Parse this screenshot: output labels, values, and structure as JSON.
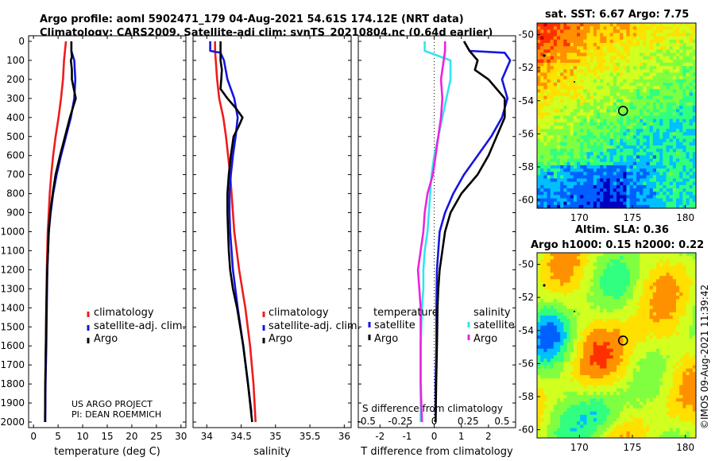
{
  "title": {
    "line1": "Argo profile: aoml 5902471_179 04-Aug-2021 54.61S 174.12E (NRT data)",
    "line2": "Climatology: CARS2009. Satellite-adj clim: synTS_20210804.nc (0.64d earlier)"
  },
  "credits": {
    "line1": "US ARGO PROJECT",
    "line2": "PI: DEAN ROEMMICH"
  },
  "imos_stamp": "©IMOS 09-Aug-2021 11:39:42",
  "colors": {
    "climatology": "#ee1c1c",
    "satellite": "#1515e0",
    "argo": "#000000",
    "sat_salinity": "#33e5ee",
    "argo_salinity": "#ee22dd"
  },
  "depth_axis": {
    "ticks": [
      0,
      100,
      200,
      300,
      400,
      500,
      600,
      700,
      800,
      900,
      1000,
      1100,
      1200,
      1300,
      1400,
      1500,
      1600,
      1700,
      1800,
      1900,
      2000
    ],
    "range": [
      0,
      2050
    ]
  },
  "chart_data": [
    {
      "type": "line",
      "name": "temperature-panel",
      "xlabel": "temperature (deg C)",
      "xlim": [
        -1,
        31
      ],
      "xticks": [
        0,
        5,
        10,
        15,
        20,
        25,
        30
      ],
      "ylim": [
        0,
        2050
      ],
      "legend": [
        "climatology",
        "satellite-adj. clim.",
        "Argo"
      ],
      "series": [
        {
          "name": "climatology",
          "depth": [
            0,
            50,
            100,
            200,
            300,
            400,
            500,
            600,
            700,
            800,
            900,
            1000,
            1200,
            1400,
            1600,
            1800,
            2000
          ],
          "values": [
            6.6,
            6.4,
            6.2,
            6.0,
            5.6,
            5.1,
            4.5,
            4.0,
            3.6,
            3.3,
            3.1,
            2.9,
            2.7,
            2.6,
            2.5,
            2.4,
            2.35
          ]
        },
        {
          "name": "satellite-adj. clim.",
          "depth": [
            0,
            50,
            100,
            200,
            300,
            400,
            500,
            600,
            700,
            800,
            900,
            1000,
            1200,
            1400,
            1600,
            1800,
            2000
          ],
          "values": [
            7.7,
            7.7,
            8.3,
            8.5,
            8.3,
            7.6,
            6.6,
            5.6,
            4.7,
            4.0,
            3.5,
            3.1,
            2.8,
            2.7,
            2.6,
            2.45,
            2.4
          ]
        },
        {
          "name": "Argo",
          "depth": [
            0,
            50,
            80,
            100,
            150,
            200,
            250,
            300,
            350,
            400,
            500,
            600,
            700,
            800,
            900,
            1000,
            1200,
            1400,
            1600,
            1800,
            2000
          ],
          "values": [
            7.7,
            7.7,
            7.8,
            7.6,
            7.8,
            7.8,
            8.2,
            8.6,
            8.0,
            7.4,
            6.4,
            5.4,
            4.5,
            3.9,
            3.4,
            3.1,
            2.8,
            2.6,
            2.5,
            2.4,
            2.35
          ]
        }
      ]
    },
    {
      "type": "line",
      "name": "salinity-panel",
      "xlabel": "salinity",
      "xlim": [
        33.8,
        36.1
      ],
      "xticks": [
        34,
        34.5,
        35,
        35.5,
        36
      ],
      "ylim": [
        0,
        2050
      ],
      "legend": [
        "climatology",
        "satellite-adj. clim.",
        "Argo"
      ],
      "series": [
        {
          "name": "climatology",
          "depth": [
            0,
            50,
            100,
            200,
            300,
            400,
            500,
            600,
            700,
            800,
            900,
            1000,
            1200,
            1400,
            1600,
            1800,
            2000
          ],
          "values": [
            34.12,
            34.12,
            34.13,
            34.15,
            34.18,
            34.24,
            34.28,
            34.31,
            34.34,
            34.36,
            34.38,
            34.4,
            34.47,
            34.56,
            34.63,
            34.68,
            34.71
          ]
        },
        {
          "name": "satellite-adj. clim.",
          "depth": [
            0,
            50,
            60,
            100,
            200,
            300,
            400,
            500,
            600,
            700,
            800,
            900,
            1000,
            1200,
            1400,
            1600,
            1800,
            1950
          ],
          "values": [
            34.05,
            34.05,
            34.2,
            34.25,
            34.3,
            34.4,
            34.45,
            34.42,
            34.38,
            34.35,
            34.33,
            34.33,
            34.34,
            34.38,
            34.45,
            34.53,
            34.6,
            34.65
          ]
        },
        {
          "name": "Argo",
          "depth": [
            0,
            50,
            100,
            150,
            200,
            250,
            300,
            350,
            400,
            450,
            500,
            600,
            700,
            800,
            900,
            1000,
            1100,
            1200,
            1300,
            1400,
            1600,
            1800,
            2000
          ],
          "values": [
            34.2,
            34.2,
            34.2,
            34.22,
            34.21,
            34.2,
            34.3,
            34.42,
            34.52,
            34.46,
            34.39,
            34.35,
            34.32,
            34.3,
            34.3,
            34.31,
            34.32,
            34.34,
            34.38,
            34.44,
            34.53,
            34.6,
            34.66
          ]
        }
      ]
    },
    {
      "type": "line",
      "name": "difference-panel",
      "xlabel": "T difference from climatology",
      "top_label": "S difference from climatology",
      "xlim": [
        -2.8,
        3.0
      ],
      "xticks": [
        -2,
        -1,
        0,
        1,
        2
      ],
      "top_ticks": [
        "-0.5",
        "-0.25",
        "0",
        "0.25",
        "0.5"
      ],
      "top_tick_values": [
        -0.5,
        -0.25,
        0,
        0.25,
        0.5
      ],
      "top_scale": 5,
      "ylim": [
        0,
        2050
      ],
      "legend_temperature_title": "temperature",
      "legend_salinity_title": "salinity",
      "legend_left": [
        "satellite",
        "Argo"
      ],
      "legend_right": [
        "satellite",
        "Argo"
      ],
      "series": [
        {
          "name": "T satellite",
          "depth": [
            0,
            50,
            60,
            100,
            200,
            300,
            400,
            500,
            600,
            700,
            800,
            900,
            1000,
            1200,
            1400,
            1600,
            1800,
            2000
          ],
          "values": [
            1.1,
            1.3,
            2.6,
            2.8,
            2.5,
            2.7,
            2.5,
            2.1,
            1.6,
            1.1,
            0.7,
            0.4,
            0.2,
            0.1,
            0.08,
            0.08,
            0.05,
            0.05
          ]
        },
        {
          "name": "T Argo",
          "depth": [
            0,
            50,
            100,
            150,
            200,
            300,
            400,
            500,
            600,
            700,
            800,
            900,
            1000,
            1100,
            1200,
            1300,
            1400,
            1600,
            1800,
            2000
          ],
          "values": [
            1.1,
            1.3,
            1.6,
            1.5,
            2.0,
            2.6,
            2.6,
            2.3,
            2.0,
            1.6,
            1.0,
            0.6,
            0.4,
            0.3,
            0.2,
            0.15,
            0.12,
            0.1,
            0.07,
            0.05
          ]
        },
        {
          "name": "S satellite",
          "depth": [
            0,
            50,
            100,
            200,
            300,
            400,
            500,
            600,
            700,
            800,
            900,
            1000,
            1100,
            1200,
            1300,
            1400,
            1600,
            1800,
            2000
          ],
          "values": [
            -0.07,
            -0.07,
            0.12,
            0.12,
            0.09,
            0.06,
            0.03,
            0.0,
            -0.02,
            -0.03,
            -0.04,
            -0.05,
            -0.07,
            -0.08,
            -0.08,
            -0.09,
            -0.1,
            -0.1,
            -0.1
          ]
        },
        {
          "name": "S Argo",
          "depth": [
            0,
            50,
            100,
            200,
            300,
            400,
            500,
            600,
            700,
            800,
            900,
            1000,
            1100,
            1200,
            1300,
            1400,
            1600,
            1800,
            2000
          ],
          "values": [
            0.08,
            0.08,
            0.07,
            0.05,
            0.06,
            0.05,
            0.03,
            0.01,
            -0.01,
            -0.05,
            -0.07,
            -0.08,
            -0.1,
            -0.12,
            -0.11,
            -0.1,
            -0.1,
            -0.1,
            -0.09
          ]
        }
      ]
    },
    {
      "type": "heatmap",
      "name": "sst-map",
      "title": "sat. SST: 6.67 Argo: 7.75",
      "xlim": [
        166,
        181
      ],
      "ylim": [
        -60.5,
        -49.3
      ],
      "xticks": [
        170,
        175,
        180
      ],
      "yticks": [
        -50,
        -52,
        -54,
        -56,
        -58,
        -60
      ],
      "float_position": {
        "lon": 174.12,
        "lat": -54.61
      },
      "colormap": [
        "#0000c0",
        "#0060ff",
        "#00c0ff",
        "#30ff80",
        "#80ff40",
        "#d0ff20",
        "#ffe000",
        "#ff9000",
        "#ff3000",
        "#c00000"
      ]
    },
    {
      "type": "heatmap",
      "name": "sla-map",
      "title": "Altim. SLA: 0.36",
      "subtitle": "Argo h1000: 0.15 h2000: 0.22",
      "xlim": [
        166,
        181
      ],
      "ylim": [
        -60.5,
        -49.3
      ],
      "xticks": [
        170,
        175,
        180
      ],
      "yticks": [
        -50,
        -52,
        -54,
        -56,
        -58,
        -60
      ],
      "float_position": {
        "lon": 174.12,
        "lat": -54.61
      }
    }
  ]
}
